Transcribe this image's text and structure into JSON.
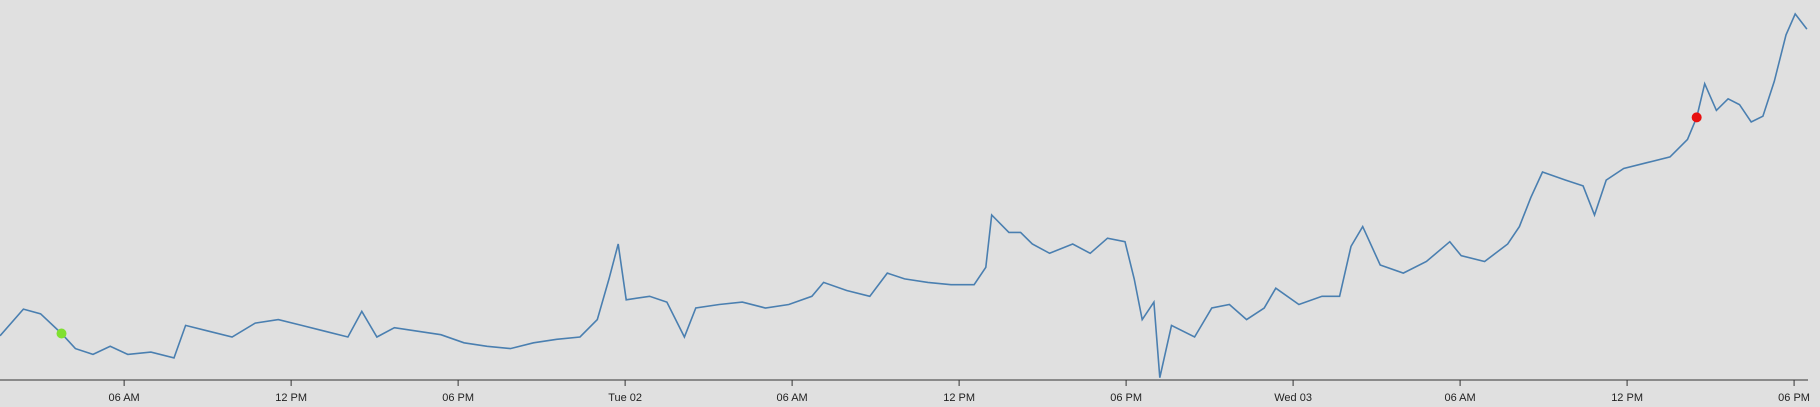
{
  "chart_data": {
    "type": "line",
    "x": [
      1.54,
      2.38,
      3.0,
      3.75,
      4.25,
      4.88,
      5.5,
      6.13,
      6.96,
      7.79,
      8.21,
      9.04,
      9.88,
      10.71,
      11.54,
      12.38,
      13.21,
      14.04,
      14.54,
      15.08,
      15.71,
      16.54,
      17.38,
      18.21,
      19.04,
      19.88,
      20.71,
      21.54,
      22.38,
      23.0,
      23.42,
      23.75,
      24.04,
      24.88,
      25.5,
      26.13,
      26.54,
      27.38,
      28.21,
      29.04,
      29.88,
      30.71,
      31.13,
      31.96,
      32.79,
      33.42,
      34.04,
      34.88,
      35.71,
      36.54,
      36.96,
      37.17,
      37.79,
      38.21,
      38.63,
      39.25,
      40.08,
      40.71,
      41.33,
      41.96,
      42.29,
      42.58,
      43.0,
      43.21,
      43.63,
      44.46,
      45.08,
      45.71,
      46.33,
      46.96,
      47.38,
      48.21,
      49.04,
      49.67,
      50.08,
      50.5,
      51.13,
      51.96,
      52.79,
      53.63,
      54.04,
      54.88,
      55.71,
      56.13,
      56.54,
      56.96,
      57.79,
      58.42,
      58.83,
      59.25,
      59.88,
      60.71,
      61.54,
      62.17,
      62.5,
      62.79,
      63.21,
      63.63,
      64.04,
      64.46,
      64.88,
      65.29,
      65.71,
      66.04,
      66.46
    ],
    "series": [
      {
        "color": "#4a7fb0",
        "values": [
          38,
          61,
          57,
          40,
          27,
          22,
          29,
          22,
          24,
          19,
          47,
          42,
          37,
          49,
          52,
          47,
          42,
          37,
          59,
          37,
          45,
          42,
          39,
          32,
          29,
          27,
          32,
          35,
          37,
          52,
          87,
          117,
          69,
          72,
          67,
          37,
          62,
          65,
          67,
          62,
          65,
          72,
          84,
          77,
          72,
          92,
          87,
          84,
          82,
          82,
          97,
          142,
          127,
          127,
          117,
          109,
          117,
          109,
          122,
          119,
          87,
          52,
          67,
          2,
          47,
          37,
          62,
          65,
          52,
          62,
          79,
          65,
          72,
          72,
          115,
          132,
          99,
          92,
          102,
          119,
          107,
          102,
          117,
          132,
          157,
          179,
          172,
          167,
          142,
          172,
          182,
          187,
          192,
          207,
          226,
          255,
          232,
          242,
          237,
          222,
          227,
          257,
          297,
          315,
          302
        ]
      }
    ],
    "points": [
      {
        "x": 3.75,
        "y": 40,
        "color": "#7fe030"
      },
      {
        "x": 62.5,
        "y": 226,
        "color": "#e81010"
      }
    ],
    "xlim": [
      1.54,
      66.5
    ],
    "ylim": [
      0,
      327
    ],
    "xticks": [
      {
        "value": 6,
        "label": "06 AM"
      },
      {
        "value": 12,
        "label": "12 PM"
      },
      {
        "value": 18,
        "label": "06 PM"
      },
      {
        "value": 24,
        "label": "Tue 02"
      },
      {
        "value": 30,
        "label": "06 AM"
      },
      {
        "value": 36,
        "label": "12 PM"
      },
      {
        "value": 42,
        "label": "06 PM"
      },
      {
        "value": 48,
        "label": "Wed 03"
      },
      {
        "value": 54,
        "label": "06 AM"
      },
      {
        "value": 60,
        "label": "12 PM"
      },
      {
        "value": 66,
        "label": "06 PM"
      }
    ]
  }
}
